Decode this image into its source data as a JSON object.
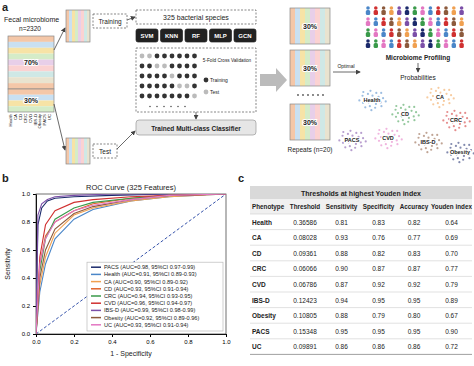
{
  "diagram": {
    "label": "a",
    "source_title": "Fecal microbiome",
    "source_n": "n=2320",
    "train_pct": "70%",
    "test_pct": "30%",
    "phenotypes": [
      "Health",
      "CA",
      "CD",
      "CRC",
      "CVD",
      "IBS-D",
      "Obesity",
      "PACS",
      "UC"
    ],
    "training": "Training",
    "test": "Test",
    "features": "325 bacterial species",
    "models": [
      "SVM",
      "KNN",
      "RF",
      "MLP",
      "GCN"
    ],
    "cv": "5-Fold Cross Validation",
    "cv_legend": [
      "Training",
      "Test"
    ],
    "classifier": "Trained Multi-class Classifier",
    "repeat_pct": [
      "30%",
      "30%",
      "30%"
    ],
    "repeats": "Repeats (n=20)",
    "optimal": "Optimal",
    "profiling": "Microbiome Profiling",
    "probabilities": "Probabilities",
    "clusters": [
      "Health",
      "CA",
      "CD",
      "CRC",
      "PACS",
      "CVD",
      "IBS-D",
      "Obesity"
    ]
  },
  "chart_data": {
    "type": "line",
    "panel_label": "b",
    "title": "ROC Curve (325 Features)",
    "x_label": "1 - Specificity",
    "y_label": "Sensitivity",
    "xlim": [
      0,
      1
    ],
    "ylim": [
      0,
      1
    ],
    "xticks": [
      {
        "value": 0,
        "label": "0.0"
      },
      {
        "value": 0.2,
        "label": "0.2"
      },
      {
        "value": 0.4,
        "label": "0.4"
      },
      {
        "value": 0.6,
        "label": "0.6"
      },
      {
        "value": 0.8,
        "label": "0.8"
      },
      {
        "value": 1,
        "label": "1.0"
      }
    ],
    "yticks": [
      {
        "value": 0,
        "label": "0.0"
      },
      {
        "value": 0.2,
        "label": "0.2"
      },
      {
        "value": 0.4,
        "label": "0.4"
      },
      {
        "value": 0.6,
        "label": "0.6"
      },
      {
        "value": 0.8,
        "label": "0.8"
      },
      {
        "value": 1,
        "label": "1.0"
      }
    ],
    "grid": false,
    "legend": "lower right",
    "series": [
      {
        "name": "PACS (AUC=0.98, 95%CI 0.97-0.99)",
        "color": "#1b2a6b",
        "x": [
          0,
          0.01,
          0.03,
          0.06,
          0.1,
          0.2,
          0.4,
          0.7,
          1
        ],
        "values": [
          0,
          0.78,
          0.9,
          0.95,
          0.97,
          0.98,
          0.99,
          1,
          1
        ]
      },
      {
        "name": "Health (AUC=0.91, 95%CI 0.89-0.93)",
        "color": "#4a86c8",
        "x": [
          0,
          0.02,
          0.05,
          0.1,
          0.2,
          0.3,
          0.5,
          0.7,
          1
        ],
        "values": [
          0,
          0.3,
          0.5,
          0.68,
          0.82,
          0.89,
          0.95,
          0.98,
          1
        ]
      },
      {
        "name": "CA (AUC=0.90, 95%CI 0.89-0.92)",
        "color": "#f0a050",
        "x": [
          0,
          0.02,
          0.05,
          0.1,
          0.2,
          0.3,
          0.5,
          0.7,
          1
        ],
        "values": [
          0,
          0.35,
          0.55,
          0.72,
          0.85,
          0.9,
          0.95,
          0.98,
          1
        ]
      },
      {
        "name": "CD (AUC=0.93, 95%CI 0.91-0.94)",
        "color": "#e0622a",
        "x": [
          0,
          0.02,
          0.05,
          0.1,
          0.2,
          0.3,
          0.5,
          0.7,
          1
        ],
        "values": [
          0,
          0.5,
          0.7,
          0.8,
          0.88,
          0.93,
          0.97,
          0.99,
          1
        ]
      },
      {
        "name": "CRC (AUC=0.94, 95%CI 0.93-0.95)",
        "color": "#3a9a4a",
        "x": [
          0,
          0.02,
          0.05,
          0.1,
          0.2,
          0.3,
          0.5,
          0.7,
          1
        ],
        "values": [
          0,
          0.45,
          0.68,
          0.82,
          0.9,
          0.94,
          0.97,
          0.99,
          1
        ]
      },
      {
        "name": "CVD (AUC=0.96, 95%CI 0.94-0.97)",
        "color": "#d03030",
        "x": [
          0,
          0.02,
          0.05,
          0.1,
          0.2,
          0.3,
          0.5,
          0.7,
          1
        ],
        "values": [
          0,
          0.55,
          0.78,
          0.88,
          0.94,
          0.96,
          0.98,
          0.99,
          1
        ]
      },
      {
        "name": "IBS-D (AUC=0.99, 95%CI 0.98-0.99)",
        "color": "#7b4fa8",
        "x": [
          0,
          0.01,
          0.03,
          0.06,
          0.1,
          0.2,
          0.4,
          0.7,
          1
        ],
        "values": [
          0,
          0.85,
          0.93,
          0.96,
          0.98,
          0.99,
          1,
          1,
          1
        ]
      },
      {
        "name": "Obesity (AUC=0.92, 95%CI 0.89-0.96)",
        "color": "#8c5a3c",
        "x": [
          0,
          0.02,
          0.05,
          0.1,
          0.2,
          0.3,
          0.5,
          0.7,
          1
        ],
        "values": [
          0,
          0.4,
          0.6,
          0.75,
          0.86,
          0.91,
          0.96,
          0.99,
          1
        ]
      },
      {
        "name": "UC (AUC=0.93, 95%CI 0.91-0.94)",
        "color": "#e377c2",
        "x": [
          0,
          0.02,
          0.05,
          0.1,
          0.2,
          0.3,
          0.5,
          0.7,
          1
        ],
        "values": [
          0,
          0.5,
          0.68,
          0.8,
          0.88,
          0.92,
          0.96,
          0.99,
          1
        ]
      }
    ]
  },
  "table": {
    "label": "c",
    "title": "Thresholds at highest Youden index",
    "header": [
      "Phenotype",
      "Threshold",
      "Sensitivity",
      "Specificity",
      "Accuracy",
      "Youden index"
    ],
    "rows": [
      [
        "Health",
        "0.36586",
        "0.81",
        "0.83",
        "0.82",
        "0.64"
      ],
      [
        "CA",
        "0.08028",
        "0.93",
        "0.76",
        "0.77",
        "0.69"
      ],
      [
        "CD",
        "0.09361",
        "0.88",
        "0.82",
        "0.83",
        "0.70"
      ],
      [
        "CRC",
        "0.06066",
        "0.90",
        "0.87",
        "0.87",
        "0.77"
      ],
      [
        "CVD",
        "0.06786",
        "0.87",
        "0.92",
        "0.92",
        "0.79"
      ],
      [
        "IBS-D",
        "0.12423",
        "0.94",
        "0.95",
        "0.95",
        "0.89"
      ],
      [
        "Obesity",
        "0.10805",
        "0.88",
        "0.79",
        "0.80",
        "0.67"
      ],
      [
        "PACS",
        "0.15348",
        "0.95",
        "0.95",
        "0.95",
        "0.90"
      ],
      [
        "UC",
        "0.09891",
        "0.86",
        "0.86",
        "0.86",
        "0.72"
      ]
    ]
  }
}
